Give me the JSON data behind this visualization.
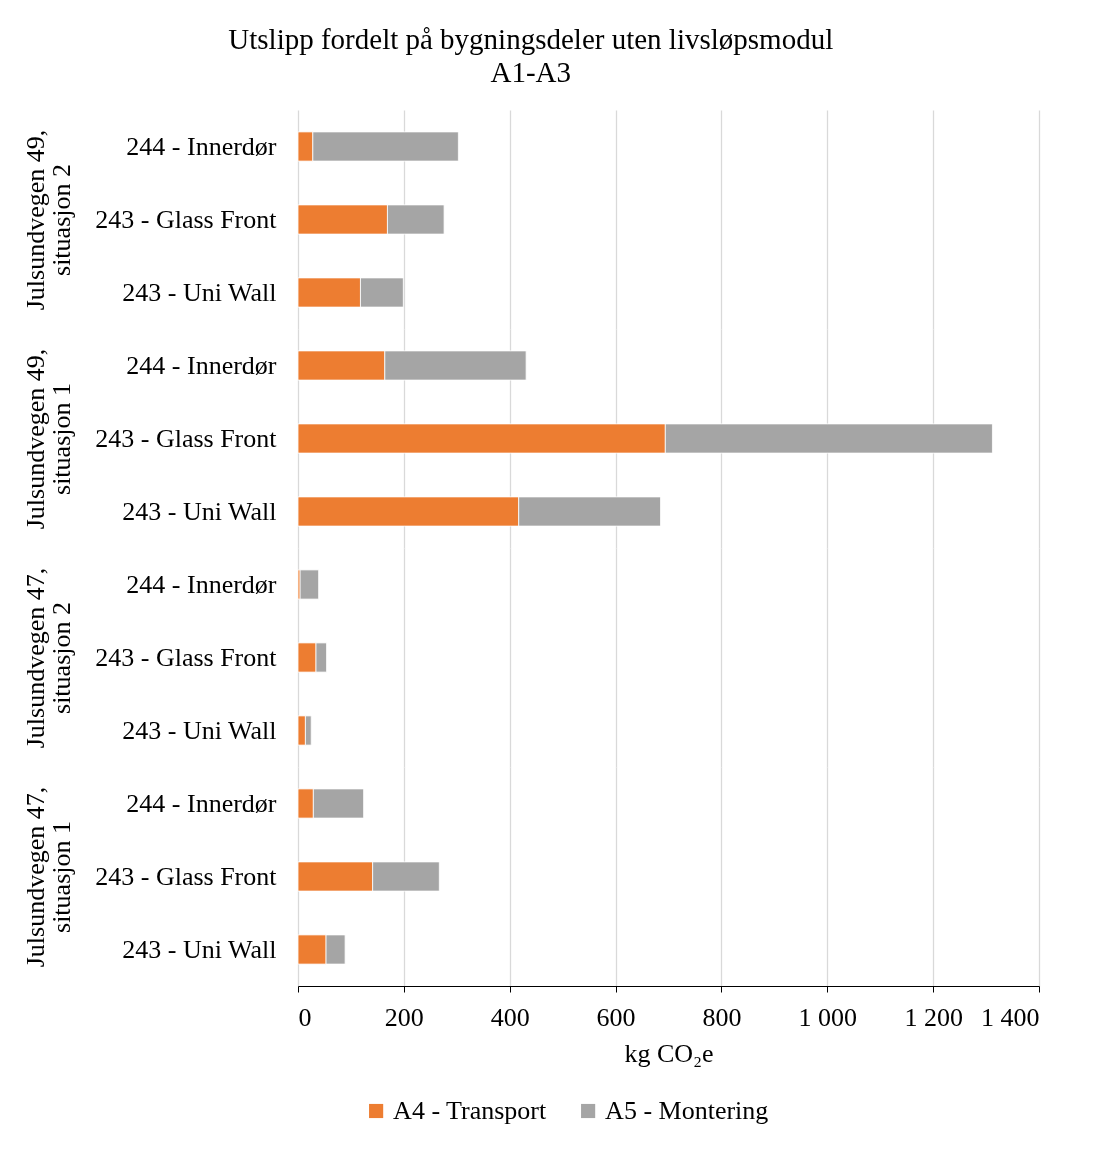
{
  "chart_data": [
    {
      "type": "bar",
      "orientation": "horizontal",
      "stacked": true,
      "title": "Utslipp fordelt på bygningsdeler uten livsløpsmodul A1-A3",
      "ylabel": "Julsundvegen 49, situasjon 2",
      "categories": [
        "244 - Innerdør",
        "243 - Glass Front",
        "243 - Uni Wall"
      ],
      "series": [
        {
          "color": "#ed7d31",
          "values": [
            28,
            169,
            118
          ]
        },
        {
          "color": "#a5a5a5",
          "values": [
            275,
            107,
            81
          ]
        }
      ],
      "xlim": [
        0,
        1400
      ],
      "xticks": [
        0,
        200,
        400,
        600,
        800,
        1000,
        1200,
        1400
      ],
      "grid": "x",
      "tick_labels": "y"
    },
    {
      "type": "bar",
      "orientation": "horizontal",
      "stacked": true,
      "ylabel": "Julsundvegen 49, situasjon 1",
      "categories": [
        "244 - Innerdør",
        "243 - Glass Front",
        "243 - Uni Wall"
      ],
      "series": [
        {
          "color": "#ed7d31",
          "values": [
            164,
            694,
            417
          ]
        },
        {
          "color": "#a5a5a5",
          "values": [
            267,
            618,
            268
          ]
        }
      ],
      "xlim": [
        0,
        1400
      ],
      "xticks": [
        0,
        200,
        400,
        600,
        800,
        1000,
        1200,
        1400
      ],
      "grid": "x",
      "tick_labels": "y"
    },
    {
      "type": "bar",
      "orientation": "horizontal",
      "stacked": true,
      "ylabel": "Julsundvegen 47, situasjon 2",
      "categories": [
        "244 - Innerdør",
        "243 - Glass Front",
        "243 - Uni Wall"
      ],
      "series": [
        {
          "color": "#ed7d31",
          "values": [
            4,
            34,
            14
          ]
        },
        {
          "color": "#a5a5a5",
          "values": [
            35,
            20,
            11
          ]
        }
      ],
      "xlim": [
        0,
        1400
      ],
      "xticks": [
        0,
        200,
        400,
        600,
        800,
        1000,
        1200,
        1400
      ],
      "grid": "x",
      "tick_labels": "y"
    },
    {
      "type": "bar",
      "orientation": "horizontal",
      "stacked": true,
      "ylabel": "Julsundvegen 47, situasjon 1",
      "xlabel": "kg CO₂e",
      "categories": [
        "244 - Innerdør",
        "243 - Glass Front",
        "243 - Uni Wall"
      ],
      "series": [
        {
          "name": "A4 - Transport",
          "color": "#ed7d31",
          "values": [
            29,
            141,
            53
          ]
        },
        {
          "name": "A5 - Montering",
          "color": "#a5a5a5",
          "values": [
            95,
            126,
            36
          ]
        }
      ],
      "xlim": [
        0,
        1400
      ],
      "xticks": [
        0,
        200,
        400,
        600,
        800,
        {
          "value": 1000,
          "label": "1 000"
        },
        {
          "value": 1200,
          "label": "1 200"
        },
        {
          "value": 1400,
          "label": "1 400"
        }
      ],
      "grid": "x",
      "legend": "bottom"
    }
  ]
}
